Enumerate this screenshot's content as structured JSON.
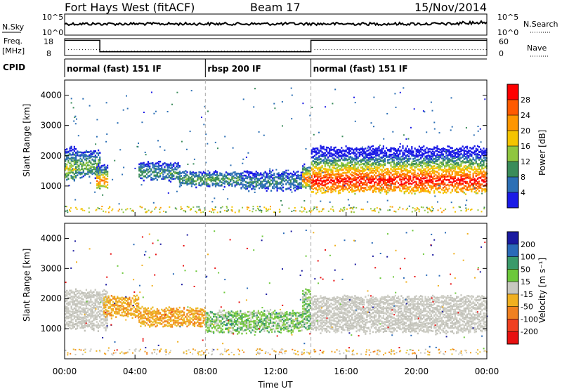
{
  "header": {
    "station": "Fort Hays West (fitACF)",
    "beam": "Beam 17",
    "date": "15/Nov/2014"
  },
  "top_panels": {
    "nsky_label": "N.Sky",
    "nsky_ticks": [
      "10^5",
      "10^0"
    ],
    "nsearch_label": "N.Search",
    "nsearch_ticks": [
      "10^5",
      "10^0"
    ],
    "freq_label": "Freq.",
    "freq_unit": "[MHz]",
    "freq_ticks": [
      "18",
      "8"
    ],
    "nave_label": "Nave",
    "nave_ticks": [
      "60",
      "0"
    ],
    "cpid_label": "CPID",
    "cpid_segments": [
      {
        "label": "normal (fast) 151 IF",
        "start": 0,
        "end": 8
      },
      {
        "label": "rbsp 200 IF",
        "start": 8,
        "end": 14
      },
      {
        "label": "normal (fast) 151 IF",
        "start": 14,
        "end": 24
      }
    ]
  },
  "chart_data": [
    {
      "type": "heatmap",
      "title": "",
      "xlabel": "",
      "ylabel": "Slant Range [km]",
      "xlim": [
        0,
        24
      ],
      "ylim": [
        0,
        4500
      ],
      "yticks": [
        "4000",
        "3000",
        "2000",
        "1000"
      ],
      "colorbar_label": "Power [dB]",
      "colorbar_ticks": [
        "28",
        "24",
        "20",
        "16",
        "12",
        "8",
        "4"
      ],
      "colorbar_colors": [
        "#ff0000",
        "#ff5a00",
        "#ff9600",
        "#f4c400",
        "#8fc63f",
        "#3a8c5a",
        "#2c6fb5",
        "#1a1ae6"
      ],
      "bands": [
        {
          "t0": 0.0,
          "t1": 0.6,
          "r0": 1200,
          "r1": 2300,
          "core": 1600,
          "level": 0.45
        },
        {
          "t0": 0.6,
          "t1": 2.0,
          "r0": 1300,
          "r1": 2200,
          "core": 1700,
          "level": 0.35
        },
        {
          "t0": 1.8,
          "t1": 2.4,
          "r0": 900,
          "r1": 1700,
          "core": 1200,
          "level": 0.7
        },
        {
          "t0": 4.2,
          "t1": 6.5,
          "r0": 1200,
          "r1": 1800,
          "core": 1450,
          "level": 0.25
        },
        {
          "t0": 6.5,
          "t1": 10.0,
          "r0": 1000,
          "r1": 1500,
          "core": 1250,
          "level": 0.3
        },
        {
          "t0": 10.0,
          "t1": 13.5,
          "r0": 900,
          "r1": 1500,
          "core": 1150,
          "level": 0.2
        },
        {
          "t0": 13.5,
          "t1": 14.0,
          "r0": 900,
          "r1": 1700,
          "core": 1250,
          "level": 0.75
        },
        {
          "t0": 14.0,
          "t1": 24.0,
          "r0": 800,
          "r1": 2300,
          "core": 1200,
          "level": 0.9
        }
      ]
    },
    {
      "type": "heatmap",
      "title": "",
      "xlabel": "Time UT",
      "ylabel": "Slant Range [km]",
      "xlim": [
        0,
        24
      ],
      "ylim": [
        0,
        4500
      ],
      "xticks": [
        "00:00",
        "04:00",
        "08:00",
        "12:00",
        "16:00",
        "20:00",
        "00:00"
      ],
      "yticks": [
        "4000",
        "3000",
        "2000",
        "1000"
      ],
      "colorbar_label": "Velocity [m s⁻¹]",
      "colorbar_ticks": [
        "200",
        "100",
        "50",
        "15",
        "-15",
        "-50",
        "-100",
        "-200"
      ],
      "colorbar_colors": [
        "#1a1aa0",
        "#2a6ab8",
        "#3a9a6a",
        "#6cc83a",
        "#c8c8c0",
        "#f0b020",
        "#f08020",
        "#f04020",
        "#e81010"
      ],
      "bands": [
        {
          "t0": 0.0,
          "t1": 2.4,
          "r0": 1000,
          "r1": 2300,
          "vel": "gray"
        },
        {
          "t0": 2.2,
          "t1": 4.2,
          "r0": 1400,
          "r1": 2100,
          "vel": "orange"
        },
        {
          "t0": 4.2,
          "t1": 8.0,
          "r0": 1100,
          "r1": 1700,
          "vel": "orange"
        },
        {
          "t0": 8.0,
          "t1": 13.5,
          "r0": 900,
          "r1": 1600,
          "vel": "green"
        },
        {
          "t0": 13.5,
          "t1": 14.0,
          "r0": 1000,
          "r1": 2300,
          "vel": "green"
        },
        {
          "t0": 14.0,
          "t1": 24.0,
          "r0": 900,
          "r1": 2100,
          "vel": "gray"
        }
      ]
    }
  ]
}
